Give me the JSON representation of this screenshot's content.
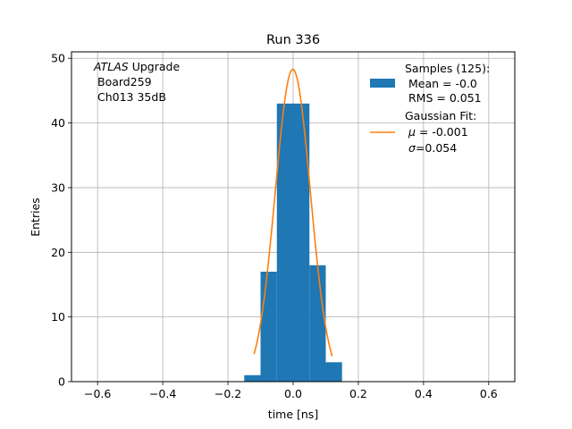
{
  "chart_data": {
    "type": "bar",
    "title": "Run 336",
    "xlabel": "time [ns]",
    "ylabel": "Entries",
    "xlim": [
      -0.68,
      0.68
    ],
    "ylim": [
      0,
      51
    ],
    "xticks": [
      -0.6,
      -0.4,
      -0.2,
      0.0,
      0.2,
      0.4,
      0.6
    ],
    "xtick_labels": [
      "−0.6",
      "−0.4",
      "−0.2",
      "0.0",
      "0.2",
      "0.4",
      "0.6"
    ],
    "yticks": [
      0,
      10,
      20,
      30,
      40,
      50
    ],
    "ytick_labels": [
      "0",
      "10",
      "20",
      "30",
      "40",
      "50"
    ],
    "grid": true,
    "legend_position": "top-right",
    "annotation": {
      "line1_italic": "ATLAS",
      "line1_rest": " Upgrade",
      "line2": "Board259",
      "line3": "Ch013 35dB"
    },
    "histogram": {
      "name": "Samples (125):",
      "stats": [
        "Mean = -0.0",
        "RMS = 0.051"
      ],
      "color": "#1f77b4",
      "bins": [
        {
          "x0": -0.15,
          "x1": -0.1,
          "count": 1
        },
        {
          "x0": -0.1,
          "x1": -0.05,
          "count": 17
        },
        {
          "x0": -0.05,
          "x1": 0.0,
          "count": 43
        },
        {
          "x0": 0.0,
          "x1": 0.05,
          "count": 43
        },
        {
          "x0": 0.05,
          "x1": 0.1,
          "count": 18
        },
        {
          "x0": 0.1,
          "x1": 0.15,
          "count": 3
        }
      ]
    },
    "fit": {
      "name": "Gaussian Fit:",
      "stats": [
        {
          "sym": "μ",
          "text": " = -0.001"
        },
        {
          "sym": "σ",
          "text": "=0.054"
        }
      ],
      "color": "#ff7f0e",
      "amplitude": 48.3,
      "mu": -0.001,
      "sigma": 0.054,
      "x_range": [
        -0.12,
        0.12
      ]
    }
  }
}
